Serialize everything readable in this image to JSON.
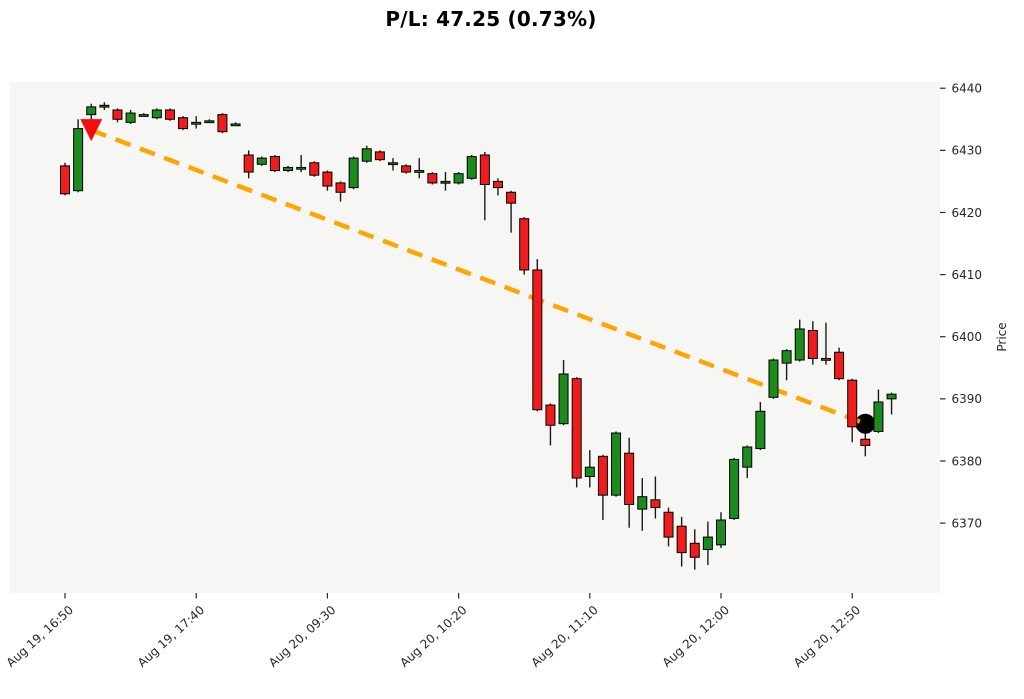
{
  "title": "P/L: 47.25 (0.73%)",
  "chart_data": {
    "type": "candlestick",
    "title": "P/L: 47.25 (0.73%)",
    "xlabel": "",
    "ylabel": "Price",
    "ylim": [
      6358.75,
      6441.0
    ],
    "grid": false,
    "legend": null,
    "y_ticks": [
      6440,
      6430,
      6420,
      6410,
      6400,
      6390,
      6380,
      6370
    ],
    "x_ticks": [
      {
        "bar_index": 0,
        "label": "Aug 19, 16:50"
      },
      {
        "bar_index": 10,
        "label": "Aug 19, 17:40"
      },
      {
        "bar_index": 20,
        "label": "Aug 20, 09:30"
      },
      {
        "bar_index": 30,
        "label": "Aug 20, 10:20"
      },
      {
        "bar_index": 40,
        "label": "Aug 20, 11:10"
      },
      {
        "bar_index": 50,
        "label": "Aug 20, 12:00"
      },
      {
        "bar_index": 60,
        "label": "Aug 20, 12:50"
      }
    ],
    "ohlc_format": [
      "open",
      "high",
      "low",
      "close"
    ],
    "candles_ohlc": [
      [
        6427.5,
        6428.0,
        6422.75,
        6423.0
      ],
      [
        6423.5,
        6435.0,
        6423.25,
        6433.5
      ],
      [
        6435.75,
        6437.5,
        6434.75,
        6437.0
      ],
      [
        6437.25,
        6437.75,
        6436.5,
        6437.25
      ],
      [
        6436.5,
        6436.75,
        6434.5,
        6435.0
      ],
      [
        6434.5,
        6436.5,
        6434.25,
        6436.0
      ],
      [
        6435.75,
        6436.0,
        6435.5,
        6435.75
      ],
      [
        6435.25,
        6436.75,
        6435.0,
        6436.5
      ],
      [
        6436.5,
        6436.75,
        6434.75,
        6435.0
      ],
      [
        6435.25,
        6435.5,
        6433.25,
        6433.5
      ],
      [
        6434.5,
        6435.5,
        6433.5,
        6434.5
      ],
      [
        6434.75,
        6435.0,
        6434.5,
        6434.75
      ],
      [
        6435.75,
        6436.0,
        6432.75,
        6433.0
      ],
      [
        6434.25,
        6434.5,
        6434.0,
        6434.25
      ],
      [
        6429.25,
        6430.0,
        6425.5,
        6426.5
      ],
      [
        6427.75,
        6429.0,
        6427.5,
        6428.75
      ],
      [
        6429.0,
        6429.25,
        6426.5,
        6426.75
      ],
      [
        6426.75,
        6427.5,
        6426.5,
        6427.25
      ],
      [
        6427.25,
        6429.25,
        6426.5,
        6427.25
      ],
      [
        6428.0,
        6428.25,
        6425.75,
        6426.0
      ],
      [
        6426.5,
        6426.75,
        6423.5,
        6424.25
      ],
      [
        6424.75,
        6425.0,
        6421.75,
        6423.25
      ],
      [
        6424.0,
        6429.0,
        6423.75,
        6428.75
      ],
      [
        6428.25,
        6430.75,
        6428.0,
        6430.25
      ],
      [
        6429.75,
        6430.0,
        6428.25,
        6428.5
      ],
      [
        6428.0,
        6428.75,
        6426.75,
        6428.0
      ],
      [
        6427.5,
        6427.75,
        6426.25,
        6426.5
      ],
      [
        6426.75,
        6428.75,
        6425.5,
        6426.75
      ],
      [
        6426.25,
        6426.5,
        6424.5,
        6424.75
      ],
      [
        6425.0,
        6426.5,
        6423.5,
        6425.0
      ],
      [
        6424.75,
        6426.5,
        6424.5,
        6426.25
      ],
      [
        6425.5,
        6429.25,
        6425.25,
        6429.0
      ],
      [
        6429.25,
        6429.75,
        6418.75,
        6424.5
      ],
      [
        6425.0,
        6425.5,
        6422.75,
        6424.0
      ],
      [
        6423.25,
        6423.5,
        6416.75,
        6421.5
      ],
      [
        6419.0,
        6419.25,
        6410.0,
        6410.75
      ],
      [
        6410.75,
        6412.5,
        6388.0,
        6388.25
      ],
      [
        6389.0,
        6389.25,
        6382.5,
        6385.75
      ],
      [
        6386.0,
        6396.25,
        6385.75,
        6394.0
      ],
      [
        6393.25,
        6393.5,
        6375.75,
        6377.25
      ],
      [
        6377.5,
        6381.75,
        6375.75,
        6379.0
      ],
      [
        6380.75,
        6381.0,
        6370.5,
        6374.5
      ],
      [
        6374.5,
        6384.75,
        6374.25,
        6384.5
      ],
      [
        6381.25,
        6383.75,
        6369.25,
        6373.0
      ],
      [
        6372.25,
        6377.25,
        6368.75,
        6374.25
      ],
      [
        6373.75,
        6377.5,
        6370.75,
        6372.5
      ],
      [
        6371.75,
        6372.5,
        6366.25,
        6367.75
      ],
      [
        6369.5,
        6371.0,
        6363.0,
        6365.25
      ],
      [
        6366.75,
        6369.0,
        6362.5,
        6364.5
      ],
      [
        6365.75,
        6370.25,
        6363.25,
        6367.75
      ],
      [
        6366.5,
        6371.75,
        6366.0,
        6370.5
      ],
      [
        6370.75,
        6380.5,
        6370.5,
        6380.25
      ],
      [
        6379.0,
        6382.5,
        6377.25,
        6382.25
      ],
      [
        6382.0,
        6389.5,
        6381.75,
        6388.0
      ],
      [
        6390.25,
        6396.5,
        6390.0,
        6396.25
      ],
      [
        6395.75,
        6398.0,
        6393.0,
        6397.75
      ],
      [
        6396.25,
        6402.75,
        6396.0,
        6401.25
      ],
      [
        6401.0,
        6402.5,
        6395.5,
        6396.5
      ],
      [
        6396.5,
        6402.25,
        6395.5,
        6396.25
      ],
      [
        6397.5,
        6398.25,
        6393.0,
        6393.25
      ],
      [
        6393.0,
        6393.25,
        6383.0,
        6385.5
      ],
      [
        6383.5,
        6384.75,
        6380.75,
        6382.5
      ],
      [
        6384.75,
        6391.5,
        6384.5,
        6389.5
      ],
      [
        6390.0,
        6391.0,
        6387.5,
        6390.75
      ]
    ],
    "trade": {
      "direction": "short",
      "entry_bar": 2,
      "entry_price": 6433.25,
      "exit_bar": 61,
      "exit_price": 6386.0,
      "pl_points": 47.25,
      "pl_percent": 0.73
    },
    "colors": {
      "up": "#1d8a1d",
      "down": "#ee1c1c",
      "candle_edge": "#000000",
      "wick": "#1a1a1a",
      "trade_line": "#ffa500",
      "entry_marker": "#f30d0d",
      "exit_marker": "#000000",
      "plot_bg": "#f6f6f4",
      "tick_label": "#262626",
      "title": "#000000"
    }
  }
}
